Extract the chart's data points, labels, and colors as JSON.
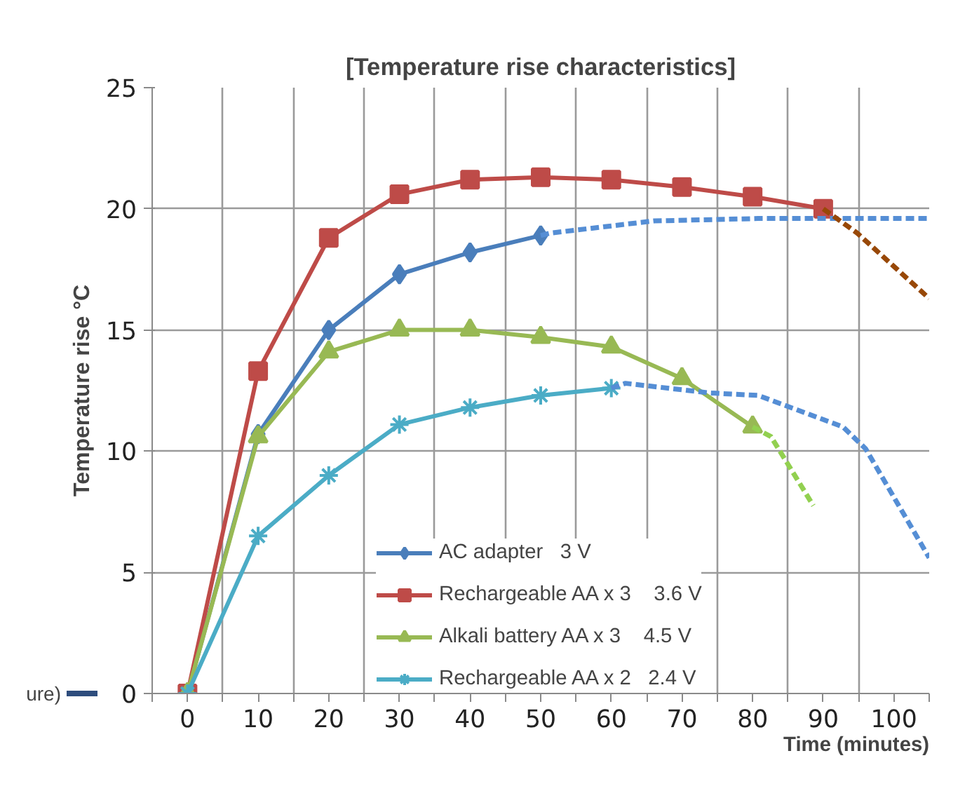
{
  "chart_data": {
    "type": "line",
    "title": "[Temperature rise characteristics]",
    "xlabel": "Time (minutes)",
    "ylabel": "Temperature rise °C",
    "annotations": [
      "ure)"
    ],
    "xlim": [
      -5,
      105
    ],
    "ylim": [
      0,
      25
    ],
    "xticks": [
      0,
      10,
      20,
      30,
      40,
      50,
      60,
      70,
      80,
      90,
      100,
      {
        "value": -5,
        "label": null
      },
      {
        "value": 5,
        "label": null
      },
      {
        "value": 15,
        "label": null
      },
      {
        "value": 25,
        "label": null
      },
      {
        "value": 35,
        "label": null
      },
      {
        "value": 45,
        "label": null
      },
      {
        "value": 55,
        "label": null
      },
      {
        "value": 65,
        "label": null
      },
      {
        "value": 75,
        "label": null
      },
      {
        "value": 85,
        "label": null
      },
      {
        "value": 95,
        "label": null
      },
      {
        "value": 105,
        "label": null
      }
    ],
    "yticks": [
      0,
      5,
      10,
      15,
      20,
      25
    ],
    "grid": true,
    "legend": "bottom",
    "series": [
      {
        "name": "AC adapter   3 V",
        "color": "#4a7ebb",
        "marker": "diamond",
        "x": [
          0,
          10,
          20,
          30,
          40,
          50
        ],
        "values": [
          0,
          10.7,
          15.0,
          17.3,
          18.2,
          18.9
        ]
      },
      {
        "name": "Rechargeable AA x 3    3.6 V",
        "color": "#be4b48",
        "marker": "square",
        "x": [
          0,
          10,
          20,
          30,
          40,
          50,
          60,
          70,
          80,
          90
        ],
        "values": [
          0,
          13.3,
          18.8,
          20.6,
          21.2,
          21.3,
          21.2,
          20.9,
          20.5,
          20.0
        ]
      },
      {
        "name": "Alkali battery AA x 3    4.5 V",
        "color": "#98b954",
        "marker": "triangle",
        "x": [
          0,
          10,
          20,
          30,
          40,
          50,
          60,
          70,
          80
        ],
        "values": [
          0,
          10.6,
          14.1,
          15.0,
          15.0,
          14.7,
          14.3,
          13.0,
          11.0
        ]
      },
      {
        "name": "Rechargeable AA x 2   2.4 V",
        "color": "#4bacc6",
        "marker": "cross",
        "x": [
          0,
          10,
          20,
          30,
          40,
          50,
          60
        ],
        "values": [
          0,
          6.5,
          9.0,
          11.1,
          11.8,
          12.3,
          12.6
        ]
      },
      {
        "color": "#558ed5",
        "line_style": "dashed",
        "marker": "none",
        "x": [
          50,
          51.4,
          66,
          80.8,
          105
        ],
        "values": [
          18.9,
          19.0,
          19.5,
          19.6,
          19.6
        ]
      },
      {
        "color": "#984807",
        "line_style": "dashed",
        "marker": "none",
        "x": [
          90,
          94.8,
          105
        ],
        "values": [
          20.0,
          19.0,
          16.3
        ]
      },
      {
        "color": "#92d050",
        "line_style": "dashed",
        "marker": "none",
        "x": [
          80,
          82.6,
          88.6
        ],
        "values": [
          11.0,
          10.6,
          7.75
        ]
      },
      {
        "color": "#558ed5",
        "line_style": "dashed",
        "marker": "none",
        "x": [
          60,
          62,
          74,
          80.8,
          92.8,
          96,
          105
        ],
        "values": [
          12.6,
          12.8,
          12.4,
          12.3,
          11.0,
          10.1,
          5.6
        ]
      }
    ]
  }
}
